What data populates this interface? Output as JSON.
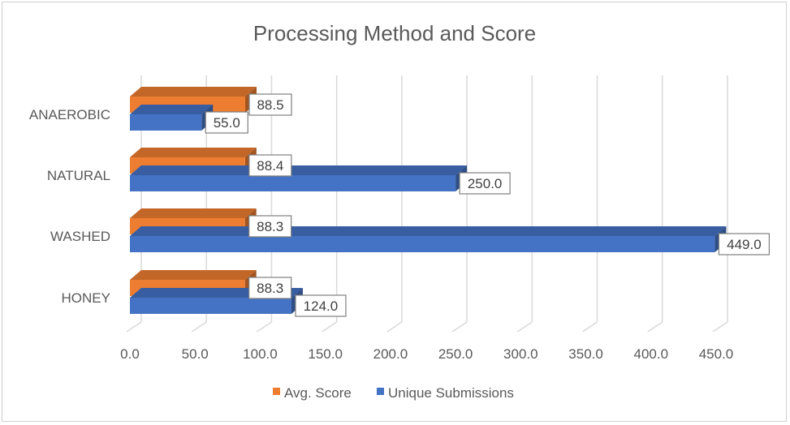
{
  "chart_data": {
    "type": "bar",
    "orientation": "horizontal",
    "title": "Processing Method and Score",
    "categories": [
      "ANAEROBIC",
      "NATURAL",
      "WASHED",
      "HONEY"
    ],
    "series": [
      {
        "name": "Avg. Score",
        "values": [
          88.5,
          88.4,
          88.3,
          88.3
        ],
        "labels": [
          "88.5",
          "88.4",
          "88.3",
          "88.3"
        ],
        "color": "#ED7D31"
      },
      {
        "name": "Unique Submissions",
        "values": [
          55.0,
          250.0,
          449.0,
          124.0
        ],
        "labels": [
          "55.0",
          "250.0",
          "449.0",
          "124.0"
        ],
        "color": "#4472C4"
      }
    ],
    "x_ticks": [
      "0.0",
      "50.0",
      "100.0",
      "150.0",
      "200.0",
      "250.0",
      "300.0",
      "350.0",
      "400.0",
      "450.0"
    ],
    "xlim": [
      0,
      450
    ],
    "grid": true,
    "legend": "bottom"
  }
}
